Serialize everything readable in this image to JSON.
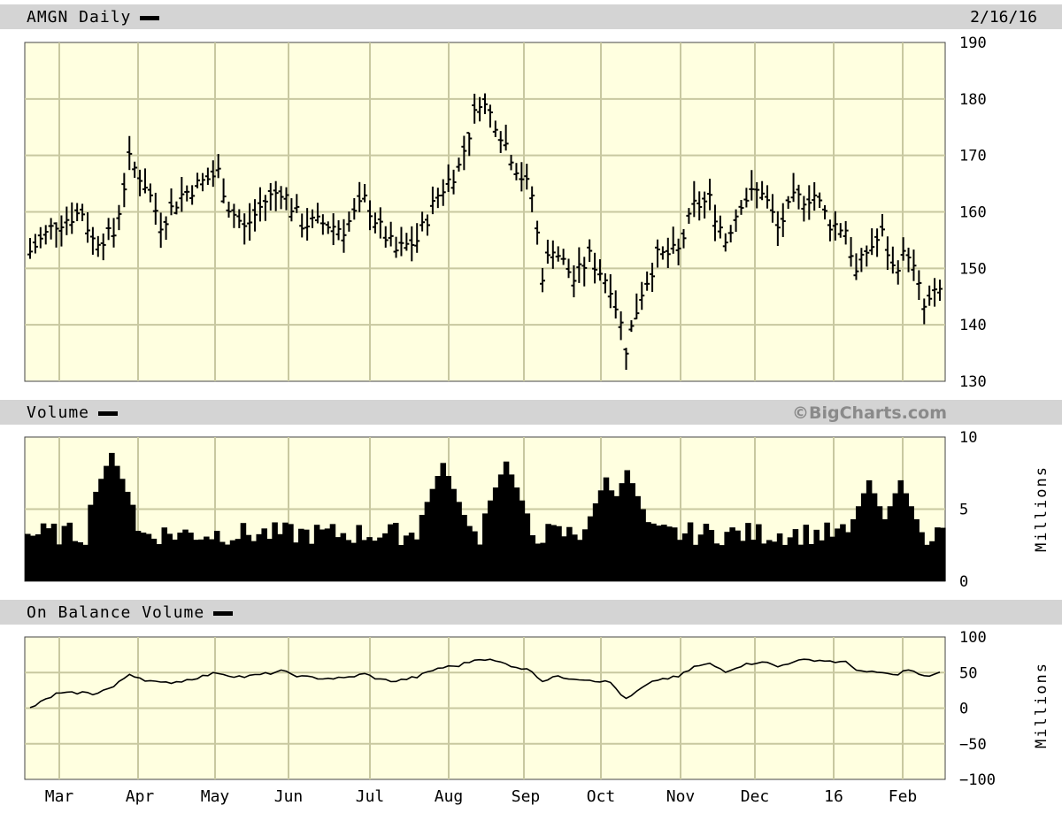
{
  "header": {
    "title": "AMGN Daily",
    "date": "2/16/16"
  },
  "volume_header": {
    "title": "Volume",
    "copyright": "©BigCharts.com"
  },
  "obv_header": {
    "title": "On Balance Volume"
  },
  "colors": {
    "plot_bg": "#ffffe0",
    "grid": "#c8c8a0",
    "band": "#d4d4d4",
    "ink": "#000000"
  },
  "chart_data": [
    {
      "type": "ohlc",
      "title": "AMGN Daily",
      "ylim": [
        130,
        190
      ],
      "yticks": [
        "190",
        "180",
        "170",
        "160",
        "150",
        "140",
        "130"
      ],
      "x": [
        "Mar",
        "Apr",
        "May",
        "Jun",
        "Jul",
        "Aug",
        "Sep",
        "Oct",
        "Nov",
        "Dec",
        "16",
        "Feb"
      ],
      "anchors": [
        [
          0,
          153
        ],
        [
          5,
          158
        ],
        [
          10,
          160
        ],
        [
          12,
          155
        ],
        [
          16,
          156
        ],
        [
          19,
          169
        ],
        [
          22,
          165
        ],
        [
          25,
          158
        ],
        [
          29,
          163
        ],
        [
          36,
          167
        ],
        [
          38,
          161
        ],
        [
          41,
          157
        ],
        [
          45,
          162
        ],
        [
          48,
          164
        ],
        [
          52,
          158
        ],
        [
          56,
          158
        ],
        [
          60,
          157
        ],
        [
          64,
          162
        ],
        [
          67,
          157
        ],
        [
          70,
          153
        ],
        [
          74,
          155
        ],
        [
          78,
          163
        ],
        [
          82,
          168
        ],
        [
          86,
          180
        ],
        [
          89,
          176
        ],
        [
          93,
          168
        ],
        [
          96,
          163
        ],
        [
          98,
          149
        ],
        [
          100,
          154
        ],
        [
          104,
          148
        ],
        [
          107,
          152
        ],
        [
          111,
          147
        ],
        [
          113,
          140
        ],
        [
          114,
          136
        ],
        [
          117,
          146
        ],
        [
          120,
          152
        ],
        [
          124,
          153
        ],
        [
          127,
          161
        ],
        [
          130,
          162
        ],
        [
          133,
          155
        ],
        [
          136,
          162
        ],
        [
          140,
          164
        ],
        [
          143,
          157
        ],
        [
          146,
          162
        ],
        [
          150,
          163
        ],
        [
          153,
          158
        ],
        [
          156,
          157
        ],
        [
          158,
          149
        ],
        [
          160,
          153
        ],
        [
          163,
          156
        ],
        [
          165,
          150
        ],
        [
          168,
          153
        ],
        [
          171,
          143
        ],
        [
          174,
          146
        ]
      ],
      "n_days": 175
    },
    {
      "type": "bar",
      "title": "Volume",
      "ylabel": "Millions",
      "ylim": [
        0,
        10
      ],
      "yticks": [
        "10",
        "5",
        "0"
      ],
      "peaks": [
        [
          16,
          8.9
        ],
        [
          79,
          8.2
        ],
        [
          91,
          8.3
        ],
        [
          110,
          7.2
        ],
        [
          114,
          7.7
        ],
        [
          160,
          7.0
        ],
        [
          166,
          7.0
        ]
      ],
      "baseline_avg": 3.3
    },
    {
      "type": "line",
      "title": "On Balance Volume",
      "ylabel": "Millions",
      "ylim": [
        -100,
        100
      ],
      "yticks": [
        "100",
        "50",
        "0",
        "−50",
        "−100"
      ],
      "points": [
        [
          0,
          0
        ],
        [
          5,
          20
        ],
        [
          10,
          22
        ],
        [
          12,
          20
        ],
        [
          16,
          30
        ],
        [
          19,
          48
        ],
        [
          22,
          40
        ],
        [
          25,
          35
        ],
        [
          29,
          38
        ],
        [
          36,
          50
        ],
        [
          38,
          46
        ],
        [
          41,
          44
        ],
        [
          45,
          48
        ],
        [
          48,
          52
        ],
        [
          52,
          44
        ],
        [
          56,
          42
        ],
        [
          60,
          42
        ],
        [
          64,
          48
        ],
        [
          67,
          40
        ],
        [
          70,
          38
        ],
        [
          74,
          44
        ],
        [
          78,
          56
        ],
        [
          82,
          60
        ],
        [
          86,
          70
        ],
        [
          89,
          66
        ],
        [
          93,
          58
        ],
        [
          96,
          52
        ],
        [
          98,
          38
        ],
        [
          100,
          44
        ],
        [
          104,
          42
        ],
        [
          107,
          40
        ],
        [
          111,
          36
        ],
        [
          113,
          20
        ],
        [
          114,
          12
        ],
        [
          117,
          28
        ],
        [
          120,
          40
        ],
        [
          124,
          44
        ],
        [
          127,
          58
        ],
        [
          130,
          62
        ],
        [
          133,
          52
        ],
        [
          136,
          60
        ],
        [
          140,
          66
        ],
        [
          143,
          58
        ],
        [
          146,
          66
        ],
        [
          150,
          68
        ],
        [
          153,
          66
        ],
        [
          156,
          64
        ],
        [
          158,
          55
        ],
        [
          160,
          50
        ],
        [
          163,
          50
        ],
        [
          165,
          46
        ],
        [
          168,
          54
        ],
        [
          171,
          44
        ],
        [
          174,
          50
        ]
      ]
    }
  ]
}
